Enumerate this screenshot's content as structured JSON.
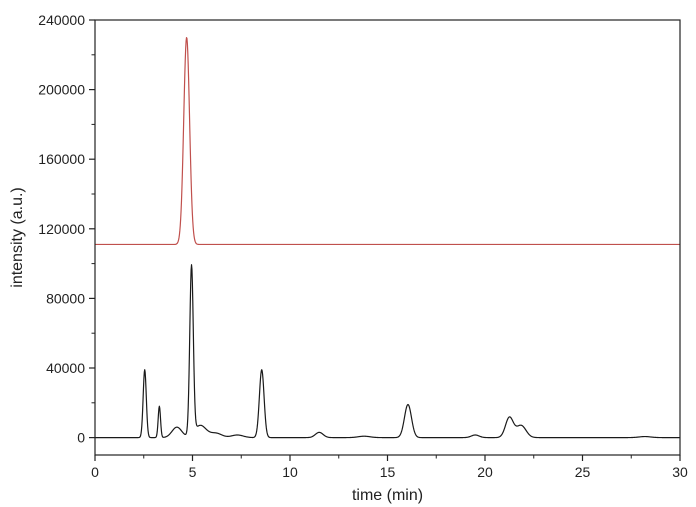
{
  "chart_data": {
    "type": "line",
    "title": "",
    "xlabel": "time (min)",
    "ylabel": "intensity (a.u.)",
    "xlim": [
      0,
      30
    ],
    "ylim": [
      -10000,
      240000
    ],
    "xticks": [
      0,
      5,
      10,
      15,
      20,
      25,
      30
    ],
    "yticks": [
      0,
      40000,
      80000,
      120000,
      160000,
      200000,
      240000
    ],
    "xtick_labels": [
      "0",
      "5",
      "10",
      "15",
      "20",
      "25",
      "30"
    ],
    "ytick_labels": [
      "0",
      "40000",
      "80000",
      "120000",
      "160000",
      "200000",
      "240000"
    ],
    "grid": false,
    "legend": "none",
    "series": [
      {
        "color": "#c0504d",
        "baseline": 111000,
        "peaks": [
          {
            "center": 4.7,
            "height": 119000,
            "width": 0.15
          }
        ]
      },
      {
        "color": "#1a1a1a",
        "baseline": 0,
        "peaks": [
          {
            "center": 2.55,
            "height": 39000,
            "width": 0.08
          },
          {
            "center": 3.3,
            "height": 18000,
            "width": 0.06
          },
          {
            "center": 4.2,
            "height": 6000,
            "width": 0.25
          },
          {
            "center": 4.95,
            "height": 97000,
            "width": 0.09
          },
          {
            "center": 5.4,
            "height": 7000,
            "width": 0.3
          },
          {
            "center": 6.2,
            "height": 2500,
            "width": 0.3
          },
          {
            "center": 7.3,
            "height": 1500,
            "width": 0.3
          },
          {
            "center": 8.55,
            "height": 39000,
            "width": 0.12
          },
          {
            "center": 11.5,
            "height": 3000,
            "width": 0.2
          },
          {
            "center": 13.8,
            "height": 800,
            "width": 0.3
          },
          {
            "center": 16.05,
            "height": 19000,
            "width": 0.18
          },
          {
            "center": 19.5,
            "height": 1500,
            "width": 0.2
          },
          {
            "center": 21.25,
            "height": 11500,
            "width": 0.2
          },
          {
            "center": 21.85,
            "height": 7000,
            "width": 0.25
          },
          {
            "center": 28.2,
            "height": 600,
            "width": 0.3
          }
        ]
      }
    ]
  }
}
